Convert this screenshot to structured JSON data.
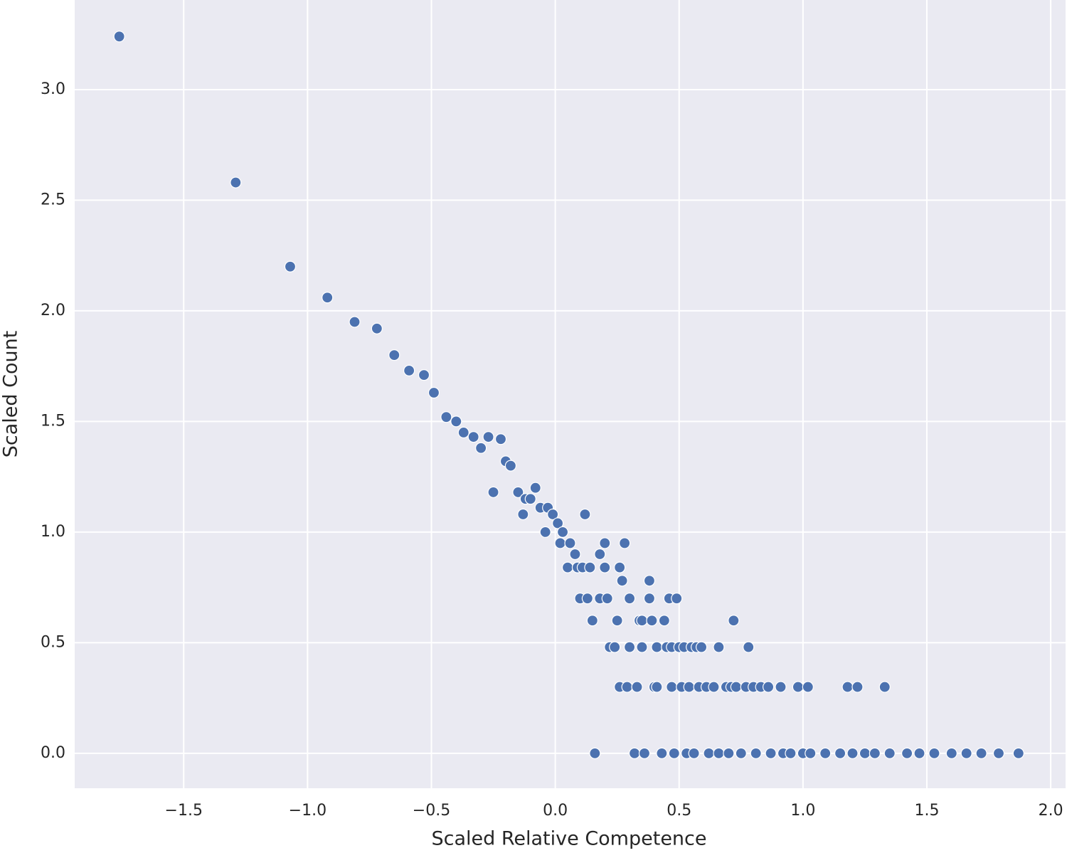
{
  "chart_data": {
    "type": "scatter",
    "xlabel": "Scaled Relative Competence",
    "ylabel": "Scaled Count",
    "color": "#4c72b0",
    "grid": true,
    "xlim": [
      -1.94,
      2.06
    ],
    "ylim": [
      -0.158,
      3.405
    ],
    "xticks": [
      {
        "value": -1.5,
        "label": "−1.5"
      },
      {
        "value": -1.0,
        "label": "−1.0"
      },
      {
        "value": -0.5,
        "label": "−0.5"
      },
      {
        "value": 0,
        "label": "0.0"
      },
      0.5,
      {
        "value": 1,
        "label": "1.0"
      },
      1.5,
      {
        "value": 2,
        "label": "2.0"
      }
    ],
    "yticks": [
      {
        "value": 0,
        "label": "0.0"
      },
      0.5,
      {
        "value": 1,
        "label": "1.0"
      },
      1.5,
      {
        "value": 2,
        "label": "2.0"
      },
      2.5,
      {
        "value": 3,
        "label": "3.0"
      }
    ],
    "x": [
      -1.76,
      -1.29,
      -1.07,
      -0.92,
      -0.81,
      -0.72,
      -0.65,
      -0.59,
      -0.53,
      -0.49,
      -0.44,
      -0.4,
      -0.37,
      -0.33,
      -0.3,
      -0.27,
      -0.25,
      -0.22,
      -0.2,
      -0.18,
      -0.15,
      -0.13,
      -0.12,
      -0.1,
      -0.08,
      -0.06,
      -0.04,
      -0.03,
      -0.01,
      0.01,
      0.02,
      0.03,
      0.05,
      0.06,
      0.08,
      0.09,
      0.1,
      0.11,
      0.12,
      0.13,
      0.14,
      0.15,
      0.16,
      0.18,
      0.18,
      0.2,
      0.2,
      0.21,
      0.22,
      0.24,
      0.25,
      0.26,
      0.26,
      0.27,
      0.28,
      0.29,
      0.3,
      0.3,
      0.32,
      0.33,
      0.34,
      0.35,
      0.35,
      0.36,
      0.38,
      0.38,
      0.39,
      0.4,
      0.41,
      0.41,
      0.43,
      0.44,
      0.45,
      0.46,
      0.47,
      0.47,
      0.48,
      0.49,
      0.5,
      0.51,
      0.52,
      0.53,
      0.54,
      0.55,
      0.56,
      0.57,
      0.58,
      0.59,
      0.61,
      0.62,
      0.64,
      0.66,
      0.66,
      0.69,
      0.7,
      0.71,
      0.72,
      0.73,
      0.75,
      0.77,
      0.78,
      0.8,
      0.81,
      0.83,
      0.86,
      0.87,
      0.91,
      0.92,
      0.95,
      0.98,
      1.0,
      1.02,
      1.03,
      1.09,
      1.15,
      1.18,
      1.2,
      1.22,
      1.25,
      1.29,
      1.33,
      1.35,
      1.42,
      1.47,
      1.53,
      1.6,
      1.66,
      1.72,
      1.79,
      1.87
    ],
    "values": [
      3.24,
      2.58,
      2.2,
      2.06,
      1.95,
      1.92,
      1.8,
      1.73,
      1.71,
      1.63,
      1.52,
      1.5,
      1.45,
      1.43,
      1.38,
      1.43,
      1.18,
      1.42,
      1.32,
      1.3,
      1.18,
      1.08,
      1.15,
      1.15,
      1.2,
      1.11,
      1.0,
      1.11,
      1.08,
      1.04,
      0.95,
      1.0,
      0.84,
      0.95,
      0.9,
      0.84,
      0.7,
      0.84,
      1.08,
      0.7,
      0.84,
      0.6,
      0,
      0.7,
      0.9,
      0.95,
      0.84,
      0.7,
      0.48,
      0.48,
      0.6,
      0.84,
      0.3,
      0.78,
      0.95,
      0.3,
      0.48,
      0.7,
      0,
      0.3,
      0.6,
      0.6,
      0.48,
      0,
      0.7,
      0.78,
      0.6,
      0.3,
      0.48,
      0.3,
      0,
      0.6,
      0.48,
      0.7,
      0.48,
      0.3,
      0,
      0.7,
      0.48,
      0.3,
      0.48,
      0,
      0.3,
      0.48,
      0,
      0.48,
      0.3,
      0.48,
      0.3,
      0,
      0.3,
      0,
      0.48,
      0.3,
      0,
      0.3,
      0.6,
      0.3,
      0,
      0.3,
      0.48,
      0.3,
      0,
      0.3,
      0.3,
      0,
      0.3,
      0,
      0,
      0.3,
      0,
      0.3,
      0,
      0,
      0,
      0.3,
      0,
      0.3,
      0,
      0,
      0.3,
      0,
      0,
      0,
      0,
      0,
      0,
      0,
      0,
      0
    ]
  }
}
